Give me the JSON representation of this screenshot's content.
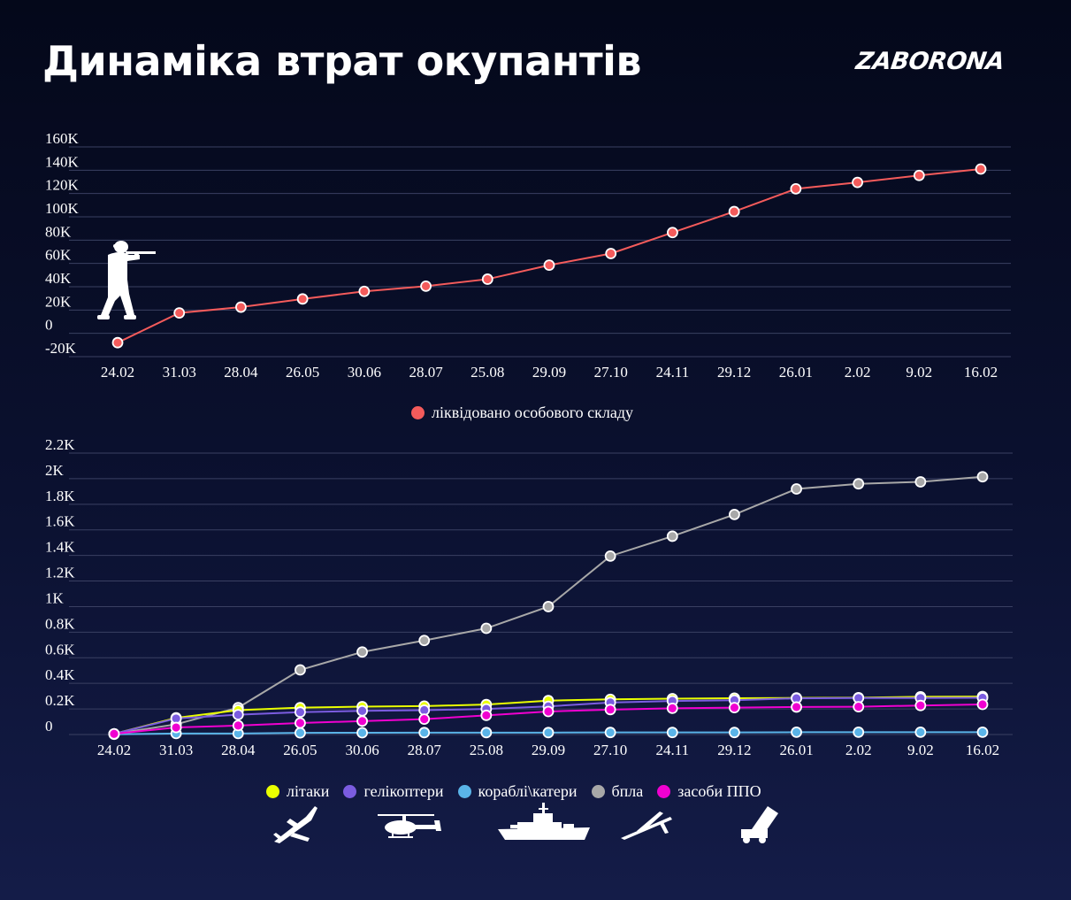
{
  "header": {
    "title": "Динаміка втрат окупантів",
    "brand": "ZABORONA"
  },
  "colors": {
    "personnel": "#f45b5b",
    "aircraft": "#eaff00",
    "helicopters": "#7b5ce0",
    "ships": "#5ab4e8",
    "drones": "#a8a8a8",
    "air_defense": "#f000d0",
    "grid": "#3a4062"
  },
  "icons": [
    "soldier-icon",
    "aircraft-icon",
    "helicopter-icon",
    "ship-icon",
    "drone-icon",
    "air-defense-icon"
  ],
  "chart_data": [
    {
      "type": "line",
      "categories": [
        "24.02",
        "31.03",
        "28.04",
        "26.05",
        "30.06",
        "28.07",
        "25.08",
        "29.09",
        "27.10",
        "24.11",
        "29.12",
        "26.01",
        "2.02",
        "9.02",
        "16.02"
      ],
      "y_ticks": [
        "160K",
        "140K",
        "120K",
        "100K",
        "80K",
        "60K",
        "40K",
        "20K",
        "0",
        "-20K"
      ],
      "ylim": [
        -20000,
        160000
      ],
      "grid": true,
      "legend_position": "bottom-center",
      "series": [
        {
          "name": "ліквідовано особового складу",
          "values": [
            -8000,
            17500,
            22500,
            29500,
            36000,
            40500,
            46500,
            58500,
            68500,
            86500,
            104500,
            124000,
            129500,
            135500,
            141000
          ]
        }
      ]
    },
    {
      "type": "line",
      "categories": [
        "24.02",
        "31.03",
        "28.04",
        "26.05",
        "30.06",
        "28.07",
        "25.08",
        "29.09",
        "27.10",
        "24.11",
        "29.12",
        "26.01",
        "2.02",
        "9.02",
        "16.02"
      ],
      "y_ticks": [
        "2.2K",
        "2K",
        "1.8K",
        "1.6K",
        "1.4K",
        "1.2K",
        "1K",
        "0.8K",
        "0.6K",
        "0.4K",
        "0.2K",
        "0"
      ],
      "ylim": [
        0,
        2200
      ],
      "grid": true,
      "legend_position": "bottom-center",
      "series": [
        {
          "name": "літаки",
          "values": [
            5,
            130,
            190,
            210,
            218,
            222,
            234,
            265,
            275,
            280,
            284,
            286,
            288,
            295,
            297
          ]
        },
        {
          "name": "гелікоптери",
          "values": [
            5,
            125,
            155,
            175,
            185,
            190,
            200,
            220,
            250,
            262,
            268,
            283,
            285,
            285,
            287
          ]
        },
        {
          "name": "кораблі\\катери",
          "values": [
            2,
            8,
            8,
            13,
            14,
            15,
            15,
            15,
            16,
            16,
            16,
            18,
            18,
            18,
            18
          ]
        },
        {
          "name": "бпла",
          "values": [
            5,
            80,
            210,
            505,
            645,
            735,
            830,
            1000,
            1395,
            1550,
            1720,
            1920,
            1960,
            1975,
            2015
          ]
        },
        {
          "name": "засоби ППО",
          "values": [
            5,
            55,
            70,
            90,
            105,
            120,
            150,
            180,
            195,
            205,
            210,
            215,
            217,
            227,
            235
          ]
        }
      ]
    }
  ]
}
